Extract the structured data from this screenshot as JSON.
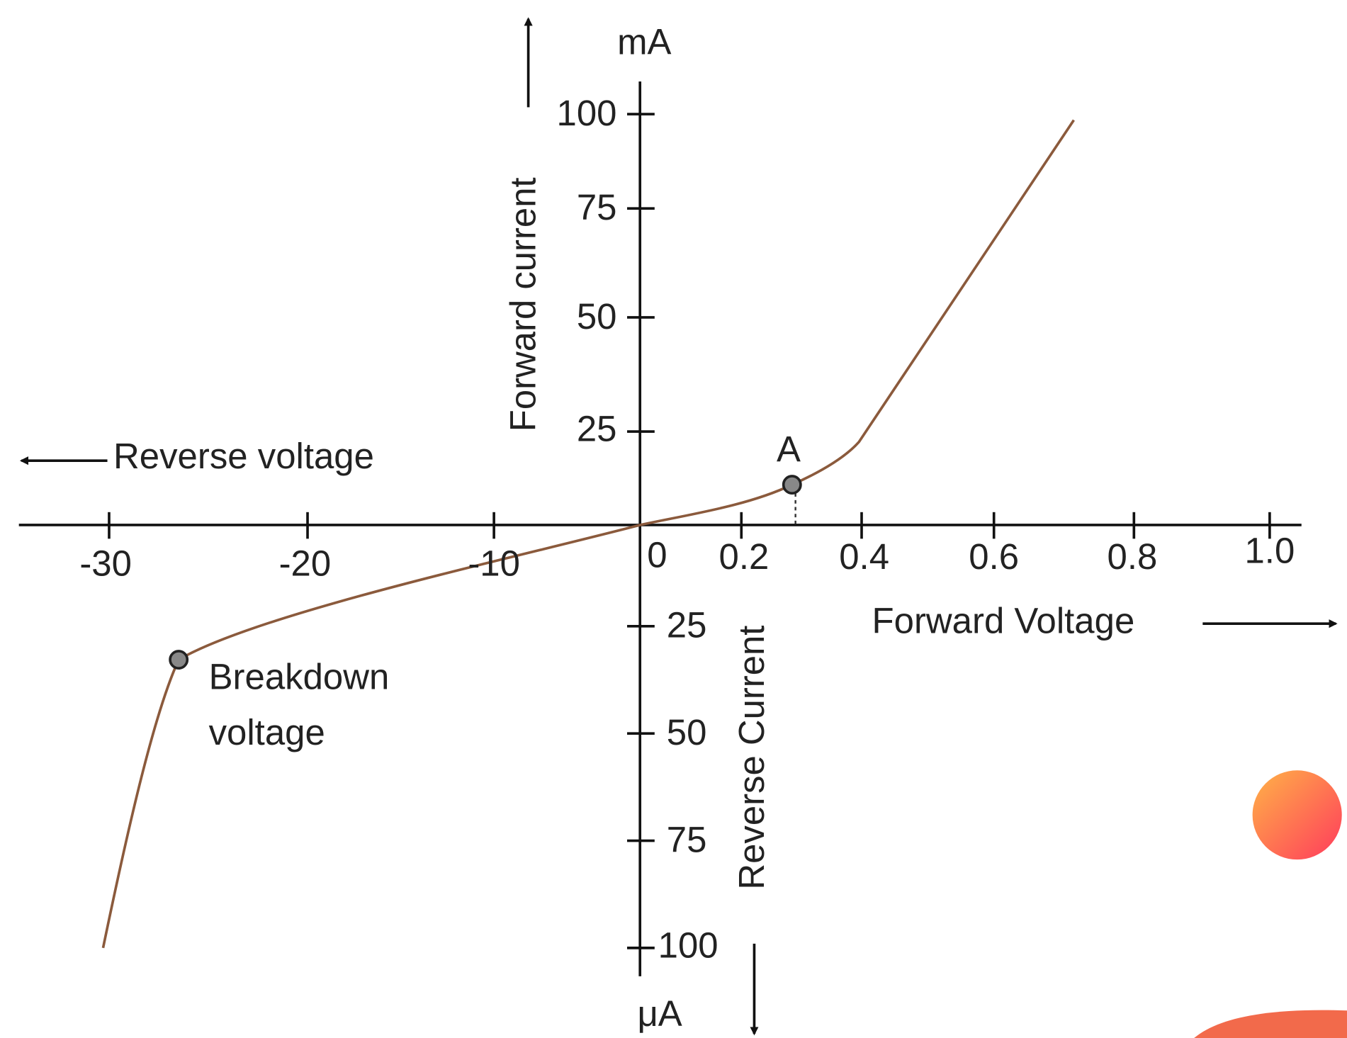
{
  "axes": {
    "y_unit_top": "mA",
    "y_unit_bottom": "μA",
    "forward_current": "Forward current",
    "reverse_current": "Reverse Current",
    "reverse_voltage": "Reverse voltage",
    "forward_voltage": "Forward Voltage",
    "origin": "0",
    "positive_y_ticks": [
      "100",
      "75",
      "50",
      "25"
    ],
    "negative_y_ticks": [
      "25",
      "50",
      "75",
      "100"
    ],
    "negative_x_ticks": [
      "-30",
      "-20",
      "-10"
    ],
    "positive_x_ticks": [
      "0.2",
      "0.4",
      "0.6",
      "0.8",
      "1.0"
    ]
  },
  "points": {
    "a": "A",
    "breakdown": [
      "Breakdown",
      "voltage"
    ]
  }
}
